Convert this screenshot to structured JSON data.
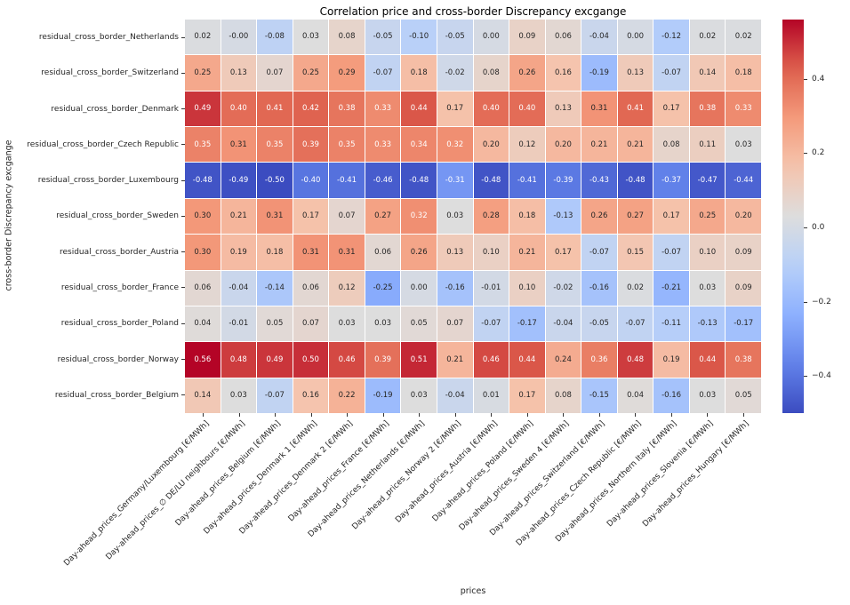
{
  "chart_data": {
    "type": "heatmap",
    "title": "Correlation price and cross-border Discrepancy excgange",
    "xlabel": "prices",
    "ylabel": "cross-border Discrepancy excgange",
    "colormap": "coolwarm",
    "color_range": {
      "vmin": -0.5,
      "vmax": 0.56
    },
    "legend_position": "right-colorbar",
    "grid": "white-cell-borders",
    "colorbar_ticks": [
      "0.4",
      "0.2",
      "0.0",
      "−0.2",
      "−0.4"
    ],
    "rows": [
      "residual_cross_border_Netherlands",
      "residual_cross_border_Switzerland",
      "residual_cross_border_Denmark",
      "residual_cross_border_Czech Republic",
      "residual_cross_border_Luxembourg",
      "residual_cross_border_Sweden",
      "residual_cross_border_Austria",
      "residual_cross_border_France",
      "residual_cross_border_Poland",
      "residual_cross_border_Norway",
      "residual_cross_border_Belgium"
    ],
    "columns": [
      "Day-ahead_prices_Germany/Luxembourg [€/MWh]",
      "Day-ahead_prices_∅ DE/LU neighbours [€/MWh]",
      "Day-ahead_prices_Belgium [€/MWh]",
      "Day-ahead_prices_Denmark 1 [€/MWh]",
      "Day-ahead_prices_Denmark 2 [€/MWh]",
      "Day-ahead_prices_France [€/MWh]",
      "Day-ahead_prices_Netherlands [€/MWh]",
      "Day-ahead_prices_Norway 2 [€/MWh]",
      "Day-ahead_prices_Austria [€/MWh]",
      "Day-ahead_prices_Poland [€/MWh]",
      "Day-ahead_prices_Sweden 4 [€/MWh]",
      "Day-ahead_prices_Switzerland [€/MWh]",
      "Day-ahead_prices_Czech Republic [€/MWh]",
      "Day-ahead_prices_Northern Italy [€/MWh]",
      "Day-ahead_prices_Slovenia [€/MWh]",
      "Day-ahead_prices_Hungary [€/MWh]"
    ],
    "values": [
      [
        "0.02",
        "-0.00",
        "-0.08",
        "0.03",
        "0.08",
        "-0.05",
        "-0.10",
        "-0.05",
        "0.00",
        "0.09",
        "0.06",
        "-0.04",
        "0.00",
        "-0.12",
        "0.02",
        "0.02"
      ],
      [
        "0.25",
        "0.13",
        "0.07",
        "0.25",
        "0.29",
        "-0.07",
        "0.18",
        "-0.02",
        "0.08",
        "0.26",
        "0.16",
        "-0.19",
        "0.13",
        "-0.07",
        "0.14",
        "0.18"
      ],
      [
        "0.49",
        "0.40",
        "0.41",
        "0.42",
        "0.38",
        "0.33",
        "0.44",
        "0.17",
        "0.40",
        "0.40",
        "0.13",
        "0.31",
        "0.41",
        "0.17",
        "0.38",
        "0.33"
      ],
      [
        "0.35",
        "0.31",
        "0.35",
        "0.39",
        "0.35",
        "0.33",
        "0.34",
        "0.32",
        "0.20",
        "0.12",
        "0.20",
        "0.21",
        "0.21",
        "0.08",
        "0.11",
        "0.03"
      ],
      [
        "-0.48",
        "-0.49",
        "-0.50",
        "-0.40",
        "-0.41",
        "-0.46",
        "-0.48",
        "-0.31",
        "-0.48",
        "-0.41",
        "-0.39",
        "-0.43",
        "-0.48",
        "-0.37",
        "-0.47",
        "-0.44"
      ],
      [
        "0.30",
        "0.21",
        "0.31",
        "0.17",
        "0.07",
        "0.27",
        "0.32",
        "0.03",
        "0.28",
        "0.18",
        "-0.13",
        "0.26",
        "0.27",
        "0.17",
        "0.25",
        "0.20"
      ],
      [
        "0.30",
        "0.19",
        "0.18",
        "0.31",
        "0.31",
        "0.06",
        "0.26",
        "0.13",
        "0.10",
        "0.21",
        "0.17",
        "-0.07",
        "0.15",
        "-0.07",
        "0.10",
        "0.09"
      ],
      [
        "0.06",
        "-0.04",
        "-0.14",
        "0.06",
        "0.12",
        "-0.25",
        "0.00",
        "-0.16",
        "-0.01",
        "0.10",
        "-0.02",
        "-0.16",
        "0.02",
        "-0.21",
        "0.03",
        "0.09"
      ],
      [
        "0.04",
        "-0.01",
        "0.05",
        "0.07",
        "0.03",
        "0.03",
        "0.05",
        "0.07",
        "-0.07",
        "-0.17",
        "-0.04",
        "-0.05",
        "-0.07",
        "-0.11",
        "-0.13",
        "-0.17"
      ],
      [
        "0.56",
        "0.48",
        "0.49",
        "0.50",
        "0.46",
        "0.39",
        "0.51",
        "0.21",
        "0.46",
        "0.44",
        "0.24",
        "0.36",
        "0.48",
        "0.19",
        "0.44",
        "0.38"
      ],
      [
        "0.14",
        "0.03",
        "-0.07",
        "0.16",
        "0.22",
        "-0.19",
        "0.03",
        "-0.04",
        "0.01",
        "0.17",
        "0.08",
        "-0.15",
        "0.04",
        "-0.16",
        "0.03",
        "0.05"
      ]
    ]
  }
}
